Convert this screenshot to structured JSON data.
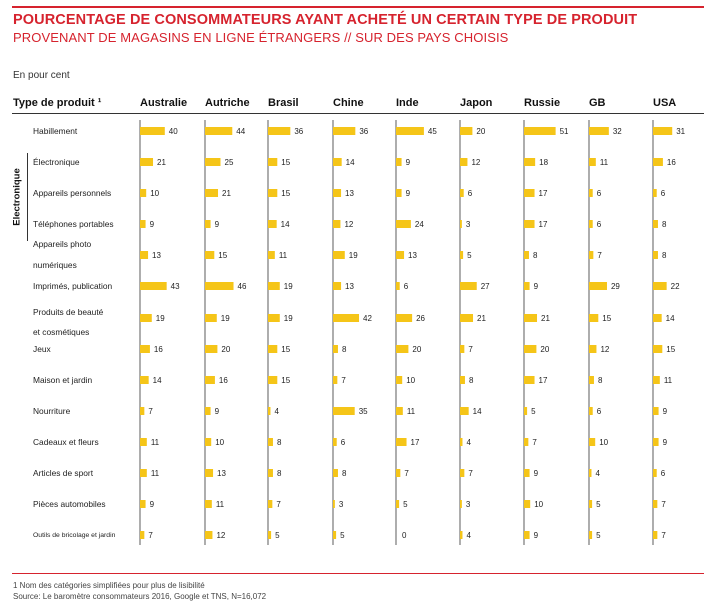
{
  "title": "POURCENTAGE DE CONSOMMATEURS AYANT ACHETÉ UN CERTAIN TYPE DE PRODUIT",
  "subtitle": "PROVENANT DE MAGASINS EN LIGNE ÉTRANGERS // SUR DES PAYS CHOISIS",
  "unit_label": "En pour cent",
  "category_header": "Type de produit ¹",
  "group_label": "Electronique",
  "footnote": "1 Nom des catégories simplifiées pour plus de lisibilité",
  "source": "Source: Le baromètre consommateurs 2016, Google et TNS, N=16,072",
  "colors": {
    "bar": "#f5c518",
    "accent": "#d6232e"
  },
  "chart_data": {
    "type": "bar",
    "orientation": "horizontal",
    "countries": [
      "Australie",
      "Autriche",
      "Brasil",
      "Chine",
      "Inde",
      "Japon",
      "Russie",
      "GB",
      "USA"
    ],
    "categories": [
      "Habillement",
      "Électronique",
      "Appareils personnels",
      "Téléphones portables",
      "Appareils photo numériques",
      "Imprimés, publication",
      "Produits de beauté et cosmétiques",
      "Jeux",
      "Maison et jardin",
      "Nourriture",
      "Cadeaux et fleurs",
      "Articles de sport",
      "Pièces automobiles",
      "Outils de bricolage et jardin"
    ],
    "category_display": [
      [
        "Habillement"
      ],
      [
        "Électronique"
      ],
      [
        "Appareils personnels"
      ],
      [
        "Téléphones portables"
      ],
      [
        "Appareils photo",
        "numériques"
      ],
      [
        "Imprimés, publication"
      ],
      [
        "Produits de beauté",
        "et cosmétiques"
      ],
      [
        "Jeux"
      ],
      [
        "Maison et jardin"
      ],
      [
        "Nourriture"
      ],
      [
        "Cadeaux et fleurs"
      ],
      [
        "Articles de sport"
      ],
      [
        "Pièces automobiles"
      ],
      [
        "Outils de bricolage et  jardin"
      ]
    ],
    "values": {
      "Australie": [
        40,
        21,
        10,
        9,
        13,
        43,
        19,
        16,
        14,
        7,
        11,
        11,
        9,
        7
      ],
      "Autriche": [
        44,
        25,
        21,
        9,
        15,
        46,
        19,
        20,
        16,
        9,
        10,
        13,
        11,
        12
      ],
      "Brasil": [
        36,
        15,
        15,
        14,
        11,
        19,
        19,
        15,
        15,
        4,
        8,
        8,
        7,
        5
      ],
      "Chine": [
        36,
        14,
        13,
        12,
        19,
        13,
        42,
        8,
        7,
        35,
        6,
        8,
        3,
        5
      ],
      "Inde": [
        45,
        9,
        9,
        24,
        13,
        6,
        26,
        20,
        10,
        11,
        17,
        7,
        5,
        0
      ],
      "Japon": [
        20,
        12,
        6,
        3,
        5,
        27,
        21,
        7,
        8,
        14,
        4,
        7,
        3,
        4
      ],
      "Russie": [
        51,
        18,
        17,
        17,
        8,
        9,
        21,
        20,
        17,
        5,
        7,
        9,
        10,
        9
      ],
      "GB": [
        32,
        11,
        6,
        6,
        7,
        29,
        15,
        12,
        8,
        6,
        10,
        4,
        5,
        5
      ],
      "USA": [
        31,
        16,
        6,
        8,
        8,
        22,
        14,
        15,
        11,
        9,
        9,
        6,
        7,
        7
      ]
    },
    "grouping": {
      "label": "Electronique",
      "categories": [
        "Électronique",
        "Appareils personnels",
        "Téléphones portables",
        "Appareils photo numériques"
      ]
    },
    "grid": false,
    "legend": "none"
  }
}
